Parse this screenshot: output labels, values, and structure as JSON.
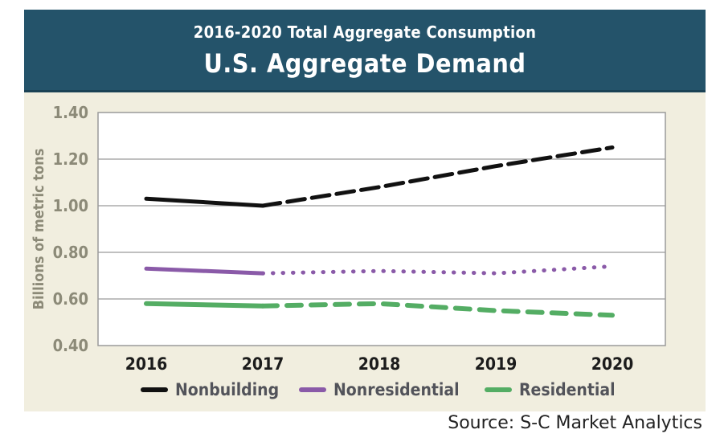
{
  "source_text": "Source: S-C Market Analytics",
  "chart_data": {
    "type": "line",
    "title": "U.S. Aggregate Demand",
    "subtitle": "2016-2020 Total Aggregate Consumption",
    "ylabel": "Billions of metric tons",
    "xlabel": "",
    "x": [
      "2016",
      "2017",
      "2018",
      "2019",
      "2020"
    ],
    "ylim": [
      0.4,
      1.4
    ],
    "yticks": [
      "1.40",
      "1.20",
      "1.00",
      "0.80",
      "0.60",
      "0.40"
    ],
    "grid": true,
    "legend_position": "bottom",
    "series": [
      {
        "name": "Nonbuilding",
        "values": [
          1.03,
          1.0,
          1.08,
          1.17,
          1.25
        ],
        "color": "#111111",
        "actual_until": "2017"
      },
      {
        "name": "Nonresidential",
        "values": [
          0.73,
          0.71,
          0.72,
          0.71,
          0.74
        ],
        "color": "#8a5aa8",
        "actual_until": "2017"
      },
      {
        "name": "Residential",
        "values": [
          0.58,
          0.57,
          0.58,
          0.55,
          0.53
        ],
        "color": "#54ad64",
        "actual_until": "2017"
      }
    ]
  }
}
